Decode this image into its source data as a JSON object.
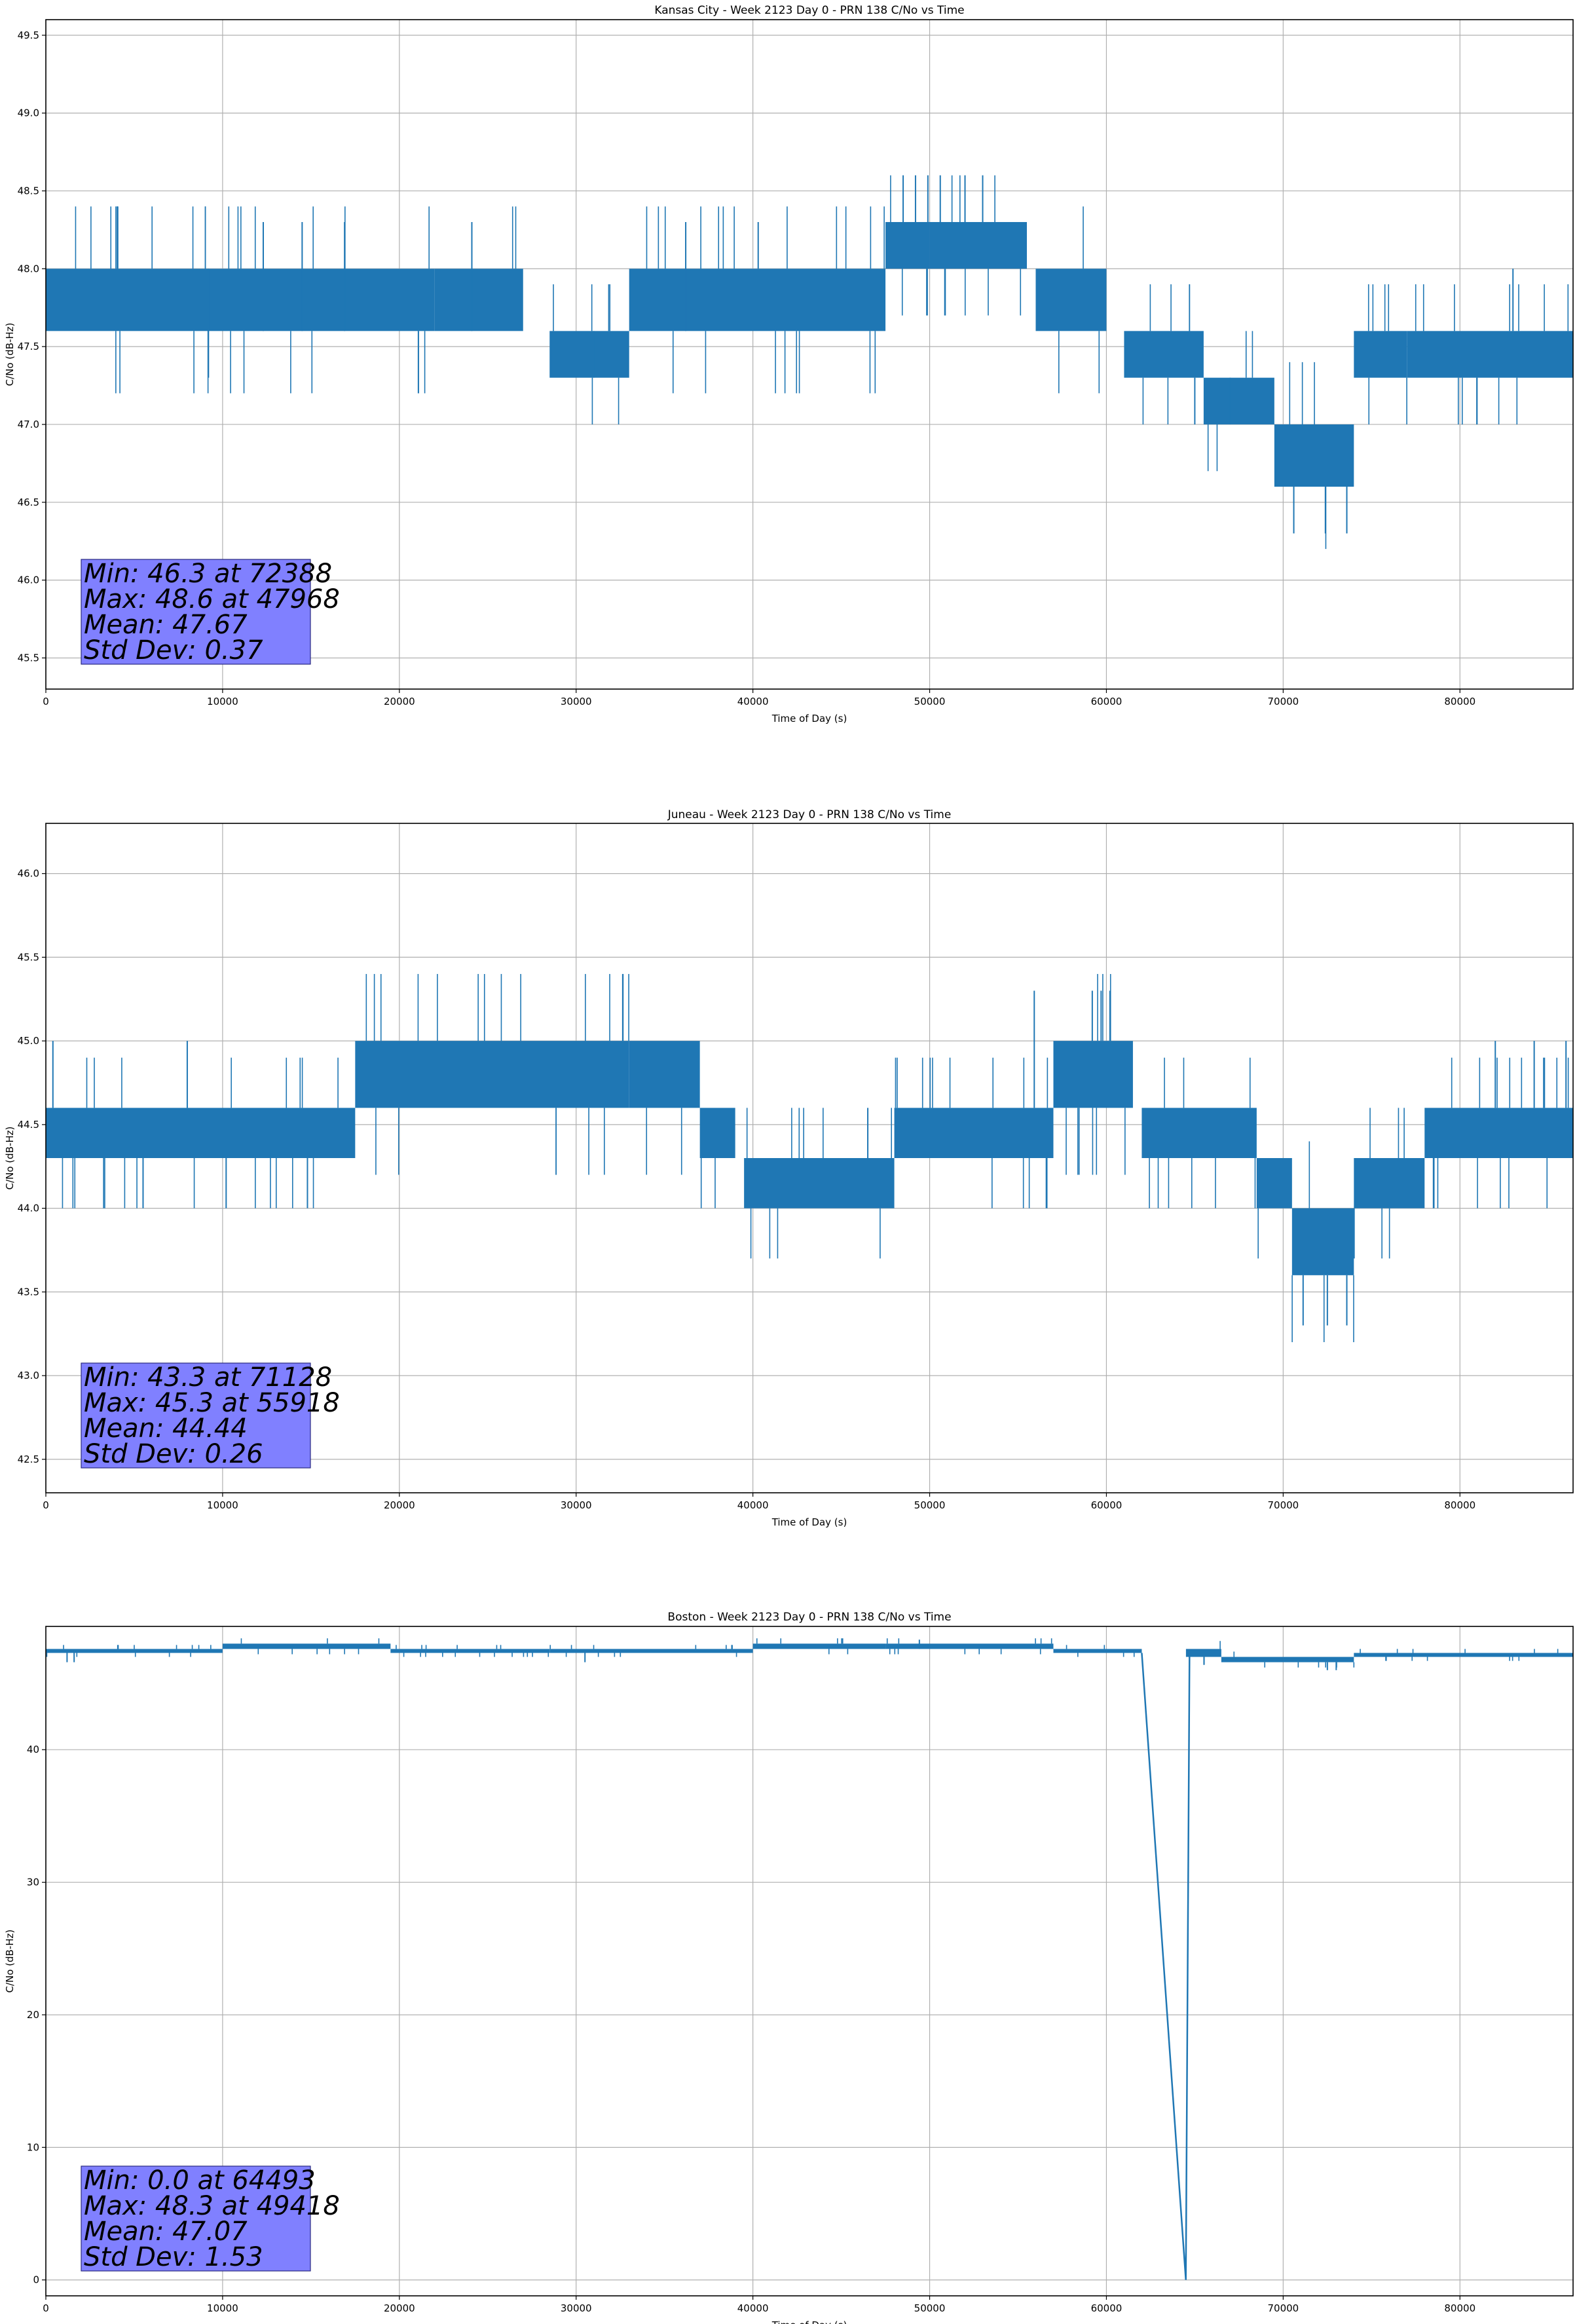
{
  "line_color": "#1f77b4",
  "stats_box_color": "#8080ff",
  "chart_data": [
    {
      "type": "line",
      "title": "Kansas City - Week 2123 Day 0 - PRN 138 C/No vs Time",
      "xlabel": "Time of Day (s)",
      "ylabel": "C/No (dB-Hz)",
      "xlim": [
        0,
        86400
      ],
      "ylim": [
        45.3,
        49.6
      ],
      "xticks": [
        0,
        10000,
        20000,
        30000,
        40000,
        50000,
        60000,
        70000,
        80000
      ],
      "yticks": [
        45.5,
        46.0,
        46.5,
        47.0,
        47.5,
        48.0,
        48.5,
        49.0,
        49.5
      ],
      "ytick_labels": [
        "45.5",
        "46.0",
        "46.5",
        "47.0",
        "47.5",
        "48.0",
        "48.5",
        "49.0",
        "49.5"
      ],
      "grid": true,
      "stats": [
        "Min: 46.3 at 72388",
        "Max: 48.6 at 47968",
        "Mean: 47.67",
        "Std Dev: 0.37"
      ],
      "series": [
        {
          "name": "C/No",
          "bands": [
            {
              "x": [
                0,
                22000
              ],
              "lo": 47.6,
              "hi": 48.0
            },
            {
              "x": [
                22000,
                27000
              ],
              "lo": 47.6,
              "hi": 48.0
            },
            {
              "x": [
                28500,
                33000
              ],
              "lo": 47.3,
              "hi": 47.6
            },
            {
              "x": [
                33000,
                47500
              ],
              "lo": 47.6,
              "hi": 48.0
            },
            {
              "x": [
                47500,
                50000
              ],
              "lo": 48.0,
              "hi": 48.3
            },
            {
              "x": [
                50000,
                55500
              ],
              "lo": 48.0,
              "hi": 48.3
            },
            {
              "x": [
                56000,
                60000
              ],
              "lo": 47.6,
              "hi": 48.0
            },
            {
              "x": [
                61000,
                65500
              ],
              "lo": 47.3,
              "hi": 47.6
            },
            {
              "x": [
                65500,
                69500
              ],
              "lo": 47.0,
              "hi": 47.3
            },
            {
              "x": [
                69500,
                74000
              ],
              "lo": 46.6,
              "hi": 47.0
            },
            {
              "x": [
                74000,
                77000
              ],
              "lo": 47.3,
              "hi": 47.6
            },
            {
              "x": [
                77000,
                86400
              ],
              "lo": 47.3,
              "hi": 47.6
            }
          ],
          "spikes": [
            [
              12300,
              47.6,
              48.3
            ],
            [
              14500,
              47.6,
              48.3
            ],
            [
              16900,
              47.6,
              48.3
            ],
            [
              24100,
              47.6,
              48.3
            ],
            [
              36200,
              47.6,
              48.3
            ],
            [
              40300,
              48.0,
              48.3
            ],
            [
              48500,
              48.3,
              48.6
            ],
            [
              49200,
              48.3,
              48.6
            ],
            [
              49900,
              48.3,
              48.6
            ],
            [
              50600,
              48.3,
              48.6
            ],
            [
              52000,
              48.3,
              48.6
            ],
            [
              53000,
              48.3,
              48.6
            ],
            [
              70600,
              46.6,
              46.3
            ],
            [
              72388,
              46.6,
              46.3
            ],
            [
              73600,
              46.6,
              46.3
            ],
            [
              65000,
              47.3,
              47.0
            ],
            [
              9200,
              48.0,
              47.3
            ],
            [
              31000,
              47.6,
              47.3
            ],
            [
              67000,
              47.3,
              47.0
            ],
            [
              83000,
              47.6,
              48.0
            ]
          ]
        }
      ]
    },
    {
      "type": "line",
      "title": "Juneau - Week 2123 Day 0 - PRN 138 C/No vs Time",
      "xlabel": "Time of Day (s)",
      "ylabel": "C/No (dB-Hz)",
      "xlim": [
        0,
        86400
      ],
      "ylim": [
        42.3,
        46.3
      ],
      "xticks": [
        0,
        10000,
        20000,
        30000,
        40000,
        50000,
        60000,
        70000,
        80000
      ],
      "yticks": [
        42.5,
        43.0,
        43.5,
        44.0,
        44.5,
        45.0,
        45.5,
        46.0
      ],
      "ytick_labels": [
        "42.5",
        "43.0",
        "43.5",
        "44.0",
        "44.5",
        "45.0",
        "45.5",
        "46.0"
      ],
      "grid": true,
      "stats": [
        "Min: 43.3 at 71128",
        "Max: 45.3 at 55918",
        "Mean: 44.44",
        "Std Dev: 0.26"
      ],
      "series": [
        {
          "name": "C/No",
          "bands": [
            {
              "x": [
                0,
                17500
              ],
              "lo": 44.3,
              "hi": 44.6
            },
            {
              "x": [
                17500,
                33000
              ],
              "lo": 44.6,
              "hi": 45.0
            },
            {
              "x": [
                33000,
                37000
              ],
              "lo": 44.6,
              "hi": 45.0
            },
            {
              "x": [
                37000,
                39000
              ],
              "lo": 44.3,
              "hi": 44.6
            },
            {
              "x": [
                39500,
                48000
              ],
              "lo": 44.0,
              "hi": 44.3
            },
            {
              "x": [
                48000,
                57000
              ],
              "lo": 44.3,
              "hi": 44.6
            },
            {
              "x": [
                57000,
                61500
              ],
              "lo": 44.6,
              "hi": 45.0
            },
            {
              "x": [
                62000,
                68500
              ],
              "lo": 44.3,
              "hi": 44.6
            },
            {
              "x": [
                68500,
                70500
              ],
              "lo": 44.0,
              "hi": 44.3
            },
            {
              "x": [
                70500,
                74000
              ],
              "lo": 43.6,
              "hi": 44.0
            },
            {
              "x": [
                74000,
                78000
              ],
              "lo": 44.0,
              "hi": 44.3
            },
            {
              "x": [
                78000,
                86400
              ],
              "lo": 44.3,
              "hi": 44.6
            }
          ],
          "spikes": [
            [
              400,
              44.6,
              45.0
            ],
            [
              8000,
              44.6,
              45.0
            ],
            [
              55918,
              44.6,
              45.3
            ],
            [
              59200,
              45.0,
              45.3
            ],
            [
              59700,
              45.0,
              45.3
            ],
            [
              60200,
              45.0,
              45.3
            ],
            [
              71128,
              43.6,
              43.3
            ],
            [
              72500,
              43.6,
              43.3
            ],
            [
              73600,
              43.6,
              43.3
            ],
            [
              5500,
              44.3,
              44.0
            ],
            [
              10200,
              44.3,
              44.0
            ],
            [
              14800,
              44.3,
              44.0
            ],
            [
              82000,
              44.6,
              45.0
            ],
            [
              84200,
              44.6,
              45.0
            ],
            [
              86000,
              44.6,
              45.0
            ],
            [
              46500,
              44.3,
              44.6
            ]
          ]
        }
      ]
    },
    {
      "type": "line",
      "title": "Boston - Week 2123 Day 0 - PRN 138 C/No vs Time",
      "xlabel": "Time of Day (s)",
      "ylabel": "C/No (dB-Hz)",
      "xlim": [
        0,
        86400
      ],
      "ylim": [
        -1.2,
        49.3
      ],
      "xticks": [
        0,
        10000,
        20000,
        30000,
        40000,
        50000,
        60000,
        70000,
        80000
      ],
      "yticks": [
        0,
        10,
        20,
        30,
        40
      ],
      "ytick_labels": [
        "0",
        "10",
        "20",
        "30",
        "40"
      ],
      "grid": true,
      "stats": [
        "Min: 0.0 at 64493",
        "Max: 48.3 at 49418",
        "Mean: 47.07",
        "Std Dev: 1.53"
      ],
      "series": [
        {
          "name": "C/No",
          "bands": [
            {
              "x": [
                0,
                10000
              ],
              "lo": 47.3,
              "hi": 47.6
            },
            {
              "x": [
                10000,
                19500
              ],
              "lo": 47.6,
              "hi": 48.0
            },
            {
              "x": [
                19500,
                28500
              ],
              "lo": 47.3,
              "hi": 47.6
            },
            {
              "x": [
                28500,
                40000
              ],
              "lo": 47.3,
              "hi": 47.6
            },
            {
              "x": [
                40000,
                47500
              ],
              "lo": 47.6,
              "hi": 48.0
            },
            {
              "x": [
                47500,
                57000
              ],
              "lo": 47.6,
              "hi": 48.0
            },
            {
              "x": [
                57000,
                62000
              ],
              "lo": 47.3,
              "hi": 47.6
            },
            {
              "x": [
                64500,
                66500
              ],
              "lo": 47.0,
              "hi": 47.6
            },
            {
              "x": [
                66500,
                74000
              ],
              "lo": 46.6,
              "hi": 47.0
            },
            {
              "x": [
                74000,
                86400
              ],
              "lo": 47.0,
              "hi": 47.3
            }
          ],
          "spikes": [
            [
              49418,
              47.6,
              48.3
            ],
            [
              1200,
              47.3,
              46.6
            ],
            [
              1600,
              47.3,
              46.6
            ],
            [
              30500,
              47.3,
              46.6
            ],
            [
              72500,
              46.6,
              46.0
            ],
            [
              73000,
              46.6,
              46.0
            ]
          ],
          "path": [
            [
              62000,
              47.3
            ],
            [
              64493,
              0.0
            ],
            [
              64700,
              47.0
            ]
          ]
        }
      ]
    }
  ]
}
